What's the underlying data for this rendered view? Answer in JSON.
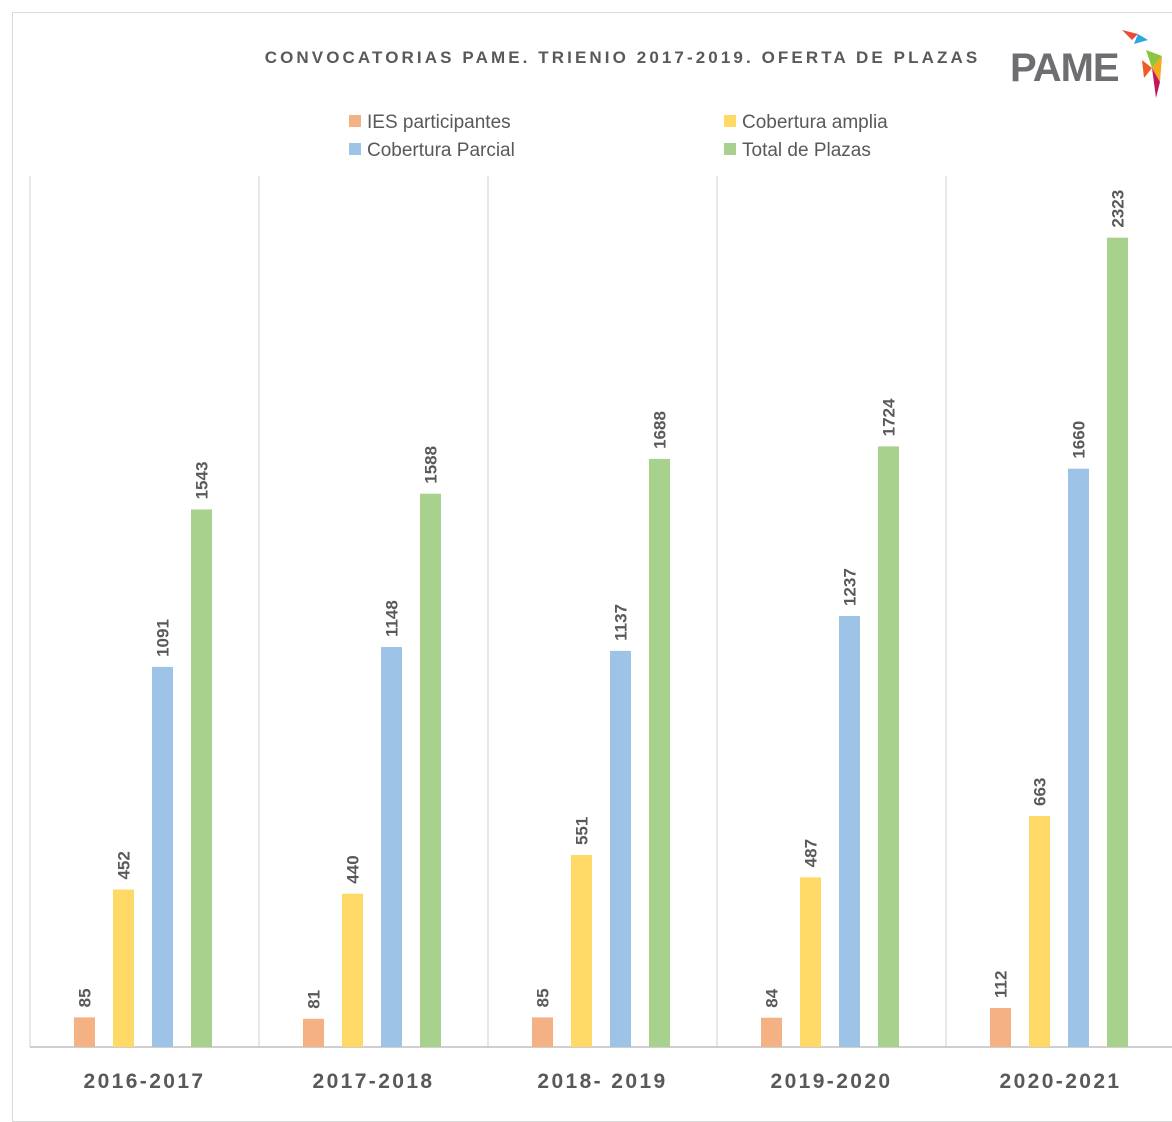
{
  "chart_data": {
    "type": "bar",
    "title": "CONVOCATORIAS PAME. TRIENIO 2017-2019. OFERTA DE PLAZAS",
    "categories": [
      "2016-2017",
      "2017-2018",
      "2018- 2019",
      "2019-2020",
      "2020-2021"
    ],
    "series": [
      {
        "name": "IES participantes",
        "color": "#f4b183",
        "values": [
          85,
          81,
          85,
          84,
          112
        ]
      },
      {
        "name": "Cobertura amplia",
        "color": "#ffd966",
        "values": [
          452,
          440,
          551,
          487,
          663
        ]
      },
      {
        "name": "Cobertura Parcial",
        "color": "#9dc3e6",
        "values": [
          1091,
          1148,
          1137,
          1237,
          1660
        ]
      },
      {
        "name": "Total de Plazas",
        "color": "#a9d18e",
        "values": [
          1543,
          1588,
          1688,
          1724,
          2323
        ]
      }
    ],
    "ylim": [
      0,
      2500
    ],
    "xlabel": "",
    "ylabel": "",
    "grid": "vertical category separators",
    "legend": "top"
  },
  "logo": {
    "text": "PAME",
    "icon": "origami-bird-logo"
  }
}
